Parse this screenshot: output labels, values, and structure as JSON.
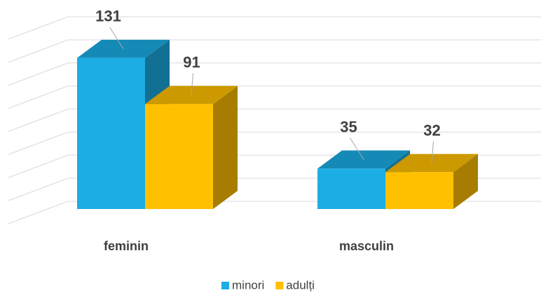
{
  "chart_data": {
    "type": "bar3d",
    "categories": [
      "feminin",
      "masculin"
    ],
    "series": [
      {
        "name": "minori",
        "color": "#1CADE4",
        "values": [
          131,
          35
        ]
      },
      {
        "name": "adulți",
        "color": "#FFC000",
        "values": [
          91,
          32
        ]
      }
    ],
    "ylim": [
      0,
      160
    ],
    "yticks": [
      0,
      20,
      40,
      60,
      80,
      100,
      120,
      140,
      160
    ],
    "grid": true,
    "legend": "bottom"
  }
}
